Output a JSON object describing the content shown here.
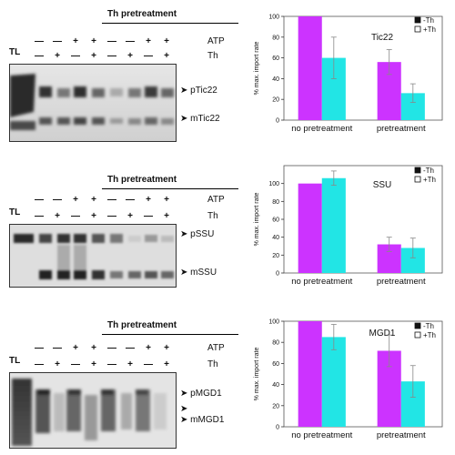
{
  "header_pretreatment": "Th pretreatment",
  "row_labels": {
    "atp": "ATP",
    "th": "Th",
    "tl": "TL"
  },
  "lanes": {
    "atp": [
      "—",
      "—",
      "+",
      "+",
      "—",
      "—",
      "+",
      "+"
    ],
    "th": [
      "—",
      "+",
      "—",
      "+",
      "—",
      "+",
      "—",
      "+"
    ]
  },
  "colors": {
    "minus_th": "#cc33ff",
    "plus_th": "#22e5e5"
  },
  "panels": [
    {
      "key": "tic22",
      "band_labels": [
        "pTic22",
        "mTic22"
      ],
      "chart_data": {
        "type": "bar",
        "title": "Tic22",
        "categories": [
          "no pretreatment",
          "pretreatment"
        ],
        "series": [
          {
            "name": "-Th",
            "values": [
              100,
              56
            ],
            "errors": [
              0,
              12
            ]
          },
          {
            "name": "+Th",
            "values": [
              60,
              26
            ],
            "errors": [
              20,
              9
            ]
          }
        ],
        "ylabel": "% max. import rate",
        "ylim": [
          0,
          100
        ],
        "yticks": [
          0,
          20,
          40,
          60,
          80,
          100
        ],
        "legend": "top-right"
      }
    },
    {
      "key": "ssu",
      "band_labels": [
        "pSSU",
        "mSSU"
      ],
      "chart_data": {
        "type": "bar",
        "title": "SSU",
        "categories": [
          "no pretreatment",
          "pretreatment"
        ],
        "series": [
          {
            "name": "-Th",
            "values": [
              100,
              32
            ],
            "errors": [
              0,
              8
            ]
          },
          {
            "name": "+Th",
            "values": [
              106,
              28
            ],
            "errors": [
              8,
              11
            ]
          }
        ],
        "ylabel": "% max. import rate",
        "ylim": [
          0,
          120
        ],
        "yticks": [
          0,
          20,
          40,
          60,
          80,
          100
        ],
        "legend": "top-right"
      }
    },
    {
      "key": "mgd1",
      "band_labels": [
        "pMGD1",
        "mMGD1"
      ],
      "chart_data": {
        "type": "bar",
        "title": "MGD1",
        "categories": [
          "no pretreatment",
          "pretreatment"
        ],
        "series": [
          {
            "name": "-Th",
            "values": [
              100,
              72
            ],
            "errors": [
              0,
              15
            ]
          },
          {
            "name": "+Th",
            "values": [
              85,
              43
            ],
            "errors": [
              12,
              15
            ]
          }
        ],
        "ylabel": "% max. import rate",
        "ylim": [
          0,
          100
        ],
        "yticks": [
          0,
          20,
          40,
          60,
          80,
          100
        ],
        "legend": "top-right"
      }
    }
  ]
}
